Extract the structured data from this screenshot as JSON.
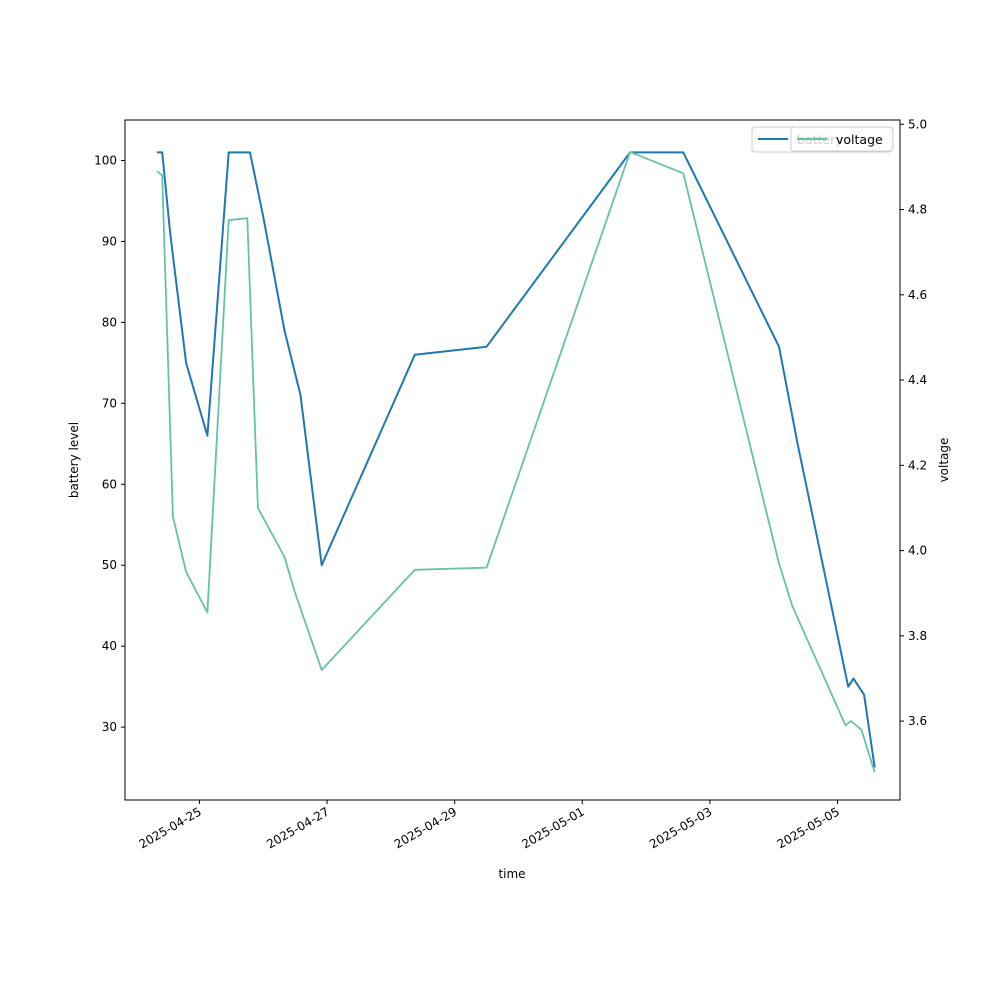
{
  "chart_data": {
    "type": "line",
    "xlabel": "time",
    "y_left_label": "battery level",
    "y_right_label": "voltage",
    "x_range": [
      "2025-04-23T20:00",
      "2025-05-05T23:30"
    ],
    "y_left_range": [
      21,
      105
    ],
    "y_right_range": [
      3.415,
      5.01
    ],
    "y_left_ticks": [
      30,
      40,
      50,
      60,
      70,
      80,
      90,
      100
    ],
    "y_right_ticks": [
      "3.6",
      "3.8",
      "4.0",
      "4.2",
      "4.4",
      "4.6",
      "4.8",
      "5.0"
    ],
    "x_ticks": [
      "2025-04-25",
      "2025-04-27",
      "2025-04-29",
      "2025-05-01",
      "2025-05-03",
      "2025-05-05"
    ],
    "grid": false,
    "legend_placement": "top-right",
    "colors": {
      "battery": "#1f77b4",
      "voltage": "#66c2a5"
    },
    "series": [
      {
        "name": "battery",
        "axis": "left",
        "points": [
          [
            "2025-04-24T08:00",
            101
          ],
          [
            "2025-04-24T10:00",
            101
          ],
          [
            "2025-04-24T13:00",
            91
          ],
          [
            "2025-04-24T19:00",
            75
          ],
          [
            "2025-04-25T03:00",
            66
          ],
          [
            "2025-04-25T11:00",
            101
          ],
          [
            "2025-04-25T19:00",
            101
          ],
          [
            "2025-04-26T00:00",
            93
          ],
          [
            "2025-04-26T08:00",
            79
          ],
          [
            "2025-04-26T14:00",
            71
          ],
          [
            "2025-04-26T22:00",
            50
          ],
          [
            "2025-04-28T09:00",
            76
          ],
          [
            "2025-04-29T12:00",
            77
          ],
          [
            "2025-05-01T18:00",
            101
          ],
          [
            "2025-05-02T14:00",
            101
          ],
          [
            "2025-05-04T02:00",
            77
          ],
          [
            "2025-05-04T09:00",
            65
          ],
          [
            "2025-05-05T04:00",
            35
          ],
          [
            "2025-05-05T06:00",
            36
          ],
          [
            "2025-05-05T10:00",
            34
          ],
          [
            "2025-05-05T14:00",
            25
          ]
        ]
      },
      {
        "name": "voltage",
        "axis": "right",
        "points": [
          [
            "2025-04-24T08:00",
            4.89
          ],
          [
            "2025-04-24T10:00",
            4.88
          ],
          [
            "2025-04-24T14:00",
            4.08
          ],
          [
            "2025-04-24T19:00",
            3.95
          ],
          [
            "2025-04-25T03:00",
            3.855
          ],
          [
            "2025-04-25T11:00",
            4.775
          ],
          [
            "2025-04-25T18:00",
            4.78
          ],
          [
            "2025-04-25T22:00",
            4.1
          ],
          [
            "2025-04-26T08:00",
            3.985
          ],
          [
            "2025-04-26T12:00",
            3.9
          ],
          [
            "2025-04-26T22:00",
            3.72
          ],
          [
            "2025-04-28T09:00",
            3.955
          ],
          [
            "2025-04-29T12:00",
            3.96
          ],
          [
            "2025-05-01T18:00",
            4.935
          ],
          [
            "2025-05-02T14:00",
            4.885
          ],
          [
            "2025-05-04T02:00",
            3.97
          ],
          [
            "2025-05-04T07:00",
            3.87
          ],
          [
            "2025-05-05T03:00",
            3.59
          ],
          [
            "2025-05-05T05:00",
            3.6
          ],
          [
            "2025-05-05T09:00",
            3.58
          ],
          [
            "2025-05-05T14:00",
            3.48
          ]
        ]
      }
    ],
    "legend": [
      "battery",
      "voltage"
    ]
  }
}
